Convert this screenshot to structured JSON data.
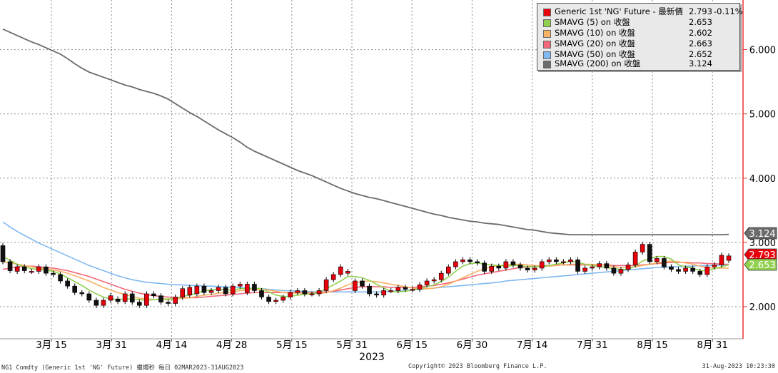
{
  "chart_data": {
    "type": "candlestick",
    "title": "",
    "xlabel": "",
    "ylabel": "",
    "ylim": [
      1.55,
      6.75
    ],
    "grid": true,
    "year_label": "2023",
    "x_ticks": [
      "3月 15",
      "3月 31",
      "4月 14",
      "4月 28",
      "5月 15",
      "5月 31",
      "6月 15",
      "6月 30",
      "7月 14",
      "7月 31",
      "8月 15",
      "8月 31"
    ],
    "y_ticks": [
      "2.000",
      "3.000",
      "4.000",
      "5.000",
      "6.000"
    ],
    "legend_position": "top-right",
    "series": [
      {
        "name": "Generic 1st 'NG' Future - 最新價",
        "value": "2.793",
        "change": "-0.11%",
        "color": "#e8000b",
        "type": "candlestick",
        "open": [
          2.95,
          2.7,
          2.55,
          2.62,
          2.55,
          2.55,
          2.62,
          2.52,
          2.5,
          2.4,
          2.32,
          2.22,
          2.2,
          2.1,
          2.02,
          2.1,
          2.12,
          2.08,
          2.2,
          2.07,
          2.02,
          2.2,
          2.17,
          2.07,
          2.05,
          2.15,
          2.18,
          2.2,
          2.32,
          2.22,
          2.25,
          2.3,
          2.2,
          2.32,
          2.22,
          2.35,
          2.25,
          2.15,
          2.08,
          2.1,
          2.15,
          2.22,
          2.25,
          2.2,
          2.2,
          2.25,
          2.42,
          2.5,
          2.52,
          2.25,
          2.4,
          2.32,
          2.2,
          2.18,
          2.25,
          2.25,
          2.3,
          2.27,
          2.27,
          2.34,
          2.4,
          2.42,
          2.52,
          2.62,
          2.7,
          2.73,
          2.7,
          2.68,
          2.55,
          2.63,
          2.6,
          2.7,
          2.65,
          2.6,
          2.57,
          2.6,
          2.7,
          2.73,
          2.7,
          2.7,
          2.73,
          2.55,
          2.6,
          2.62,
          2.67,
          2.6,
          2.52,
          2.58,
          2.65,
          2.85,
          2.97,
          2.7,
          2.75,
          2.62,
          2.58,
          2.55,
          2.6,
          2.55,
          2.5,
          2.62,
          2.65,
          2.72
        ],
        "close": [
          2.7,
          2.56,
          2.62,
          2.56,
          2.55,
          2.62,
          2.52,
          2.5,
          2.4,
          2.32,
          2.22,
          2.2,
          2.1,
          2.02,
          2.1,
          2.17,
          2.08,
          2.2,
          2.07,
          2.02,
          2.2,
          2.17,
          2.07,
          2.05,
          2.15,
          2.28,
          2.3,
          2.32,
          2.22,
          2.25,
          2.3,
          2.2,
          2.32,
          2.35,
          2.35,
          2.25,
          2.15,
          2.08,
          2.1,
          2.15,
          2.22,
          2.25,
          2.2,
          2.2,
          2.25,
          2.42,
          2.5,
          2.62,
          2.55,
          2.4,
          2.32,
          2.2,
          2.18,
          2.25,
          2.25,
          2.3,
          2.27,
          2.27,
          2.34,
          2.4,
          2.42,
          2.52,
          2.62,
          2.7,
          2.73,
          2.7,
          2.68,
          2.55,
          2.63,
          2.6,
          2.7,
          2.65,
          2.6,
          2.57,
          2.6,
          2.7,
          2.73,
          2.7,
          2.7,
          2.73,
          2.55,
          2.6,
          2.62,
          2.67,
          2.6,
          2.52,
          2.58,
          2.65,
          2.85,
          2.97,
          2.7,
          2.75,
          2.62,
          2.58,
          2.55,
          2.6,
          2.55,
          2.5,
          2.62,
          2.65,
          2.8,
          2.79
        ]
      },
      {
        "name": "SMAVG (5)  on 收盤",
        "value": "2.653",
        "color": "#92d050",
        "type": "line",
        "values": [
          2.78,
          2.72,
          2.66,
          2.62,
          2.59,
          2.58,
          2.57,
          2.55,
          2.51,
          2.45,
          2.39,
          2.33,
          2.26,
          2.2,
          2.15,
          2.12,
          2.11,
          2.12,
          2.12,
          2.11,
          2.1,
          2.11,
          2.12,
          2.12,
          2.13,
          2.16,
          2.18,
          2.21,
          2.25,
          2.26,
          2.27,
          2.26,
          2.26,
          2.28,
          2.28,
          2.29,
          2.28,
          2.23,
          2.18,
          2.16,
          2.16,
          2.18,
          2.19,
          2.2,
          2.22,
          2.28,
          2.34,
          2.4,
          2.47,
          2.47,
          2.45,
          2.41,
          2.35,
          2.29,
          2.24,
          2.23,
          2.24,
          2.26,
          2.28,
          2.31,
          2.34,
          2.39,
          2.46,
          2.55,
          2.63,
          2.67,
          2.68,
          2.66,
          2.65,
          2.64,
          2.63,
          2.64,
          2.64,
          2.62,
          2.62,
          2.62,
          2.64,
          2.66,
          2.68,
          2.71,
          2.69,
          2.66,
          2.64,
          2.62,
          2.61,
          2.59,
          2.58,
          2.58,
          2.63,
          2.71,
          2.75,
          2.78,
          2.78,
          2.74,
          2.65,
          2.62,
          2.6,
          2.56,
          2.56,
          2.59,
          2.62,
          2.65
        ]
      },
      {
        "name": "SMAVG (10)  on 收盤",
        "value": "2.602",
        "color": "#f9b163",
        "type": "line",
        "values": [
          2.7,
          2.68,
          2.66,
          2.64,
          2.62,
          2.6,
          2.59,
          2.57,
          2.55,
          2.52,
          2.48,
          2.44,
          2.4,
          2.35,
          2.3,
          2.26,
          2.22,
          2.19,
          2.16,
          2.13,
          2.12,
          2.11,
          2.11,
          2.11,
          2.12,
          2.13,
          2.14,
          2.16,
          2.18,
          2.19,
          2.21,
          2.22,
          2.23,
          2.25,
          2.26,
          2.27,
          2.27,
          2.26,
          2.24,
          2.22,
          2.21,
          2.21,
          2.21,
          2.21,
          2.2,
          2.22,
          2.25,
          2.29,
          2.34,
          2.37,
          2.39,
          2.4,
          2.39,
          2.37,
          2.35,
          2.33,
          2.31,
          2.29,
          2.28,
          2.28,
          2.29,
          2.31,
          2.35,
          2.4,
          2.45,
          2.5,
          2.55,
          2.59,
          2.62,
          2.64,
          2.65,
          2.66,
          2.66,
          2.65,
          2.64,
          2.63,
          2.63,
          2.64,
          2.65,
          2.66,
          2.66,
          2.66,
          2.66,
          2.65,
          2.64,
          2.62,
          2.61,
          2.61,
          2.62,
          2.64,
          2.66,
          2.68,
          2.7,
          2.71,
          2.7,
          2.68,
          2.66,
          2.63,
          2.61,
          2.6,
          2.6,
          2.6
        ]
      },
      {
        "name": "SMAVG (20)  on 收盤",
        "value": "2.663",
        "color": "#f2687b",
        "type": "line",
        "values": [
          2.58,
          2.6,
          2.62,
          2.63,
          2.63,
          2.62,
          2.61,
          2.6,
          2.58,
          2.56,
          2.53,
          2.5,
          2.47,
          2.43,
          2.39,
          2.35,
          2.31,
          2.27,
          2.24,
          2.21,
          2.19,
          2.17,
          2.16,
          2.15,
          2.14,
          2.14,
          2.14,
          2.14,
          2.15,
          2.16,
          2.17,
          2.18,
          2.19,
          2.2,
          2.21,
          2.22,
          2.22,
          2.22,
          2.22,
          2.22,
          2.22,
          2.22,
          2.22,
          2.22,
          2.22,
          2.23,
          2.24,
          2.26,
          2.28,
          2.3,
          2.31,
          2.31,
          2.31,
          2.31,
          2.3,
          2.3,
          2.3,
          2.3,
          2.31,
          2.32,
          2.33,
          2.35,
          2.37,
          2.4,
          2.43,
          2.46,
          2.49,
          2.51,
          2.53,
          2.55,
          2.57,
          2.59,
          2.61,
          2.62,
          2.63,
          2.64,
          2.64,
          2.65,
          2.65,
          2.65,
          2.65,
          2.65,
          2.65,
          2.65,
          2.65,
          2.64,
          2.64,
          2.64,
          2.64,
          2.65,
          2.66,
          2.67,
          2.68,
          2.69,
          2.69,
          2.69,
          2.68,
          2.68,
          2.67,
          2.67,
          2.66,
          2.66
        ]
      },
      {
        "name": "SMAVG (50)  on 收盤",
        "value": "2.652",
        "color": "#7fb8f0",
        "type": "line",
        "values": [
          3.32,
          3.24,
          3.17,
          3.11,
          3.05,
          2.99,
          2.94,
          2.89,
          2.84,
          2.79,
          2.74,
          2.69,
          2.64,
          2.6,
          2.56,
          2.52,
          2.48,
          2.45,
          2.42,
          2.4,
          2.38,
          2.37,
          2.36,
          2.35,
          2.34,
          2.34,
          2.33,
          2.33,
          2.32,
          2.32,
          2.31,
          2.31,
          2.3,
          2.3,
          2.29,
          2.29,
          2.28,
          2.27,
          2.26,
          2.25,
          2.25,
          2.24,
          2.24,
          2.23,
          2.23,
          2.23,
          2.23,
          2.23,
          2.23,
          2.23,
          2.23,
          2.23,
          2.23,
          2.23,
          2.24,
          2.24,
          2.25,
          2.26,
          2.27,
          2.28,
          2.29,
          2.3,
          2.31,
          2.32,
          2.33,
          2.34,
          2.35,
          2.36,
          2.37,
          2.38,
          2.4,
          2.41,
          2.42,
          2.43,
          2.44,
          2.45,
          2.46,
          2.47,
          2.48,
          2.49,
          2.5,
          2.51,
          2.52,
          2.53,
          2.54,
          2.55,
          2.56,
          2.57,
          2.58,
          2.59,
          2.6,
          2.61,
          2.61,
          2.62,
          2.62,
          2.63,
          2.63,
          2.64,
          2.64,
          2.64,
          2.65,
          2.65
        ]
      },
      {
        "name": "SMAVG (200)  on 收盤",
        "value": "3.124",
        "color": "#6b6b6b",
        "type": "line",
        "values": [
          6.32,
          6.27,
          6.22,
          6.17,
          6.12,
          6.08,
          6.03,
          5.98,
          5.93,
          5.86,
          5.78,
          5.71,
          5.65,
          5.61,
          5.57,
          5.53,
          5.49,
          5.45,
          5.42,
          5.38,
          5.35,
          5.32,
          5.28,
          5.23,
          5.16,
          5.09,
          5.02,
          4.96,
          4.89,
          4.82,
          4.75,
          4.69,
          4.63,
          4.56,
          4.48,
          4.42,
          4.37,
          4.32,
          4.27,
          4.22,
          4.17,
          4.12,
          4.08,
          4.04,
          3.99,
          3.94,
          3.89,
          3.84,
          3.8,
          3.76,
          3.73,
          3.7,
          3.68,
          3.65,
          3.62,
          3.59,
          3.56,
          3.53,
          3.5,
          3.47,
          3.44,
          3.42,
          3.39,
          3.37,
          3.35,
          3.33,
          3.32,
          3.3,
          3.29,
          3.28,
          3.26,
          3.24,
          3.22,
          3.2,
          3.19,
          3.17,
          3.15,
          3.14,
          3.13,
          3.12,
          3.12,
          3.12,
          3.12,
          3.12,
          3.12,
          3.12,
          3.12,
          3.12,
          3.12,
          3.12,
          3.12,
          3.12,
          3.12,
          3.12,
          3.12,
          3.12,
          3.12,
          3.12,
          3.12,
          3.12,
          3.12,
          3.124
        ]
      }
    ],
    "last_value_labels": [
      {
        "value": "3.124",
        "color": "#6b6b6b"
      },
      {
        "value": "2.793",
        "color": "#e8000b"
      },
      {
        "value": "2.653",
        "color": "#92d050"
      }
    ]
  },
  "footer": {
    "left": "NG1 Comdty (Generic 1st 'NG' Future) 蠟燭秒  每日 02MAR2023-31AUG2023",
    "center": "Copyright© 2023 Bloomberg Finance L.P.",
    "right": "31-Aug-2023 10:23:30"
  }
}
